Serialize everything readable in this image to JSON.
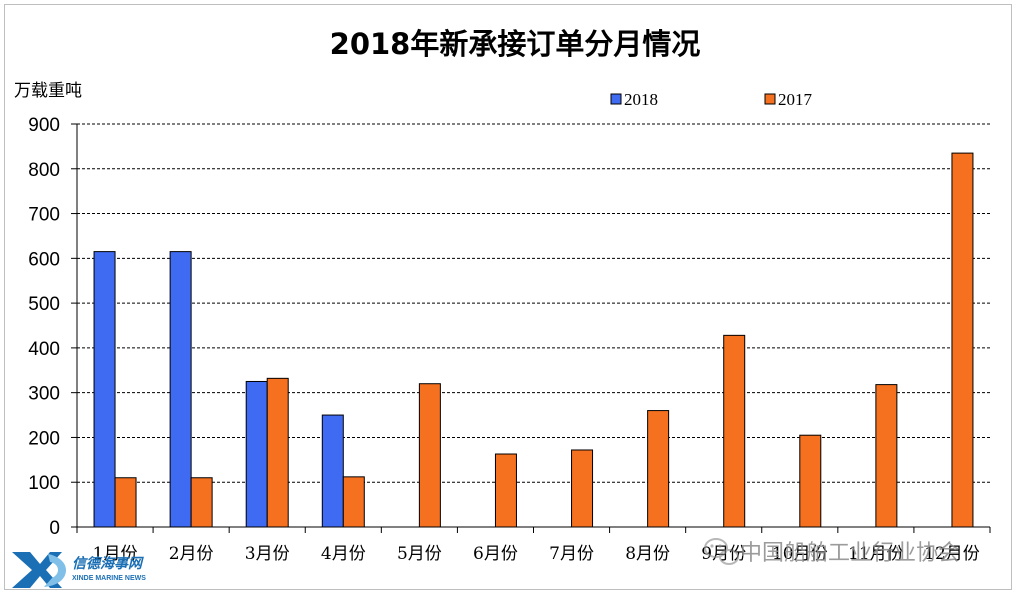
{
  "chart_data": {
    "type": "bar",
    "title": "2018年新承接订单分月情况",
    "ylabel": "万载重吨",
    "xlabel": "",
    "ylim": [
      0,
      900
    ],
    "yticks": [
      0,
      100,
      200,
      300,
      400,
      500,
      600,
      700,
      800,
      900
    ],
    "grid": true,
    "legend_position": "top-right",
    "categories": [
      "1月份",
      "2月份",
      "3月份",
      "4月份",
      "5月份",
      "6月份",
      "7月份",
      "8月份",
      "9月份",
      "10月份",
      "11月份",
      "12月份"
    ],
    "series": [
      {
        "name": "2018",
        "color": "#3F6AF2",
        "values": [
          615,
          615,
          325,
          250,
          null,
          null,
          null,
          null,
          null,
          null,
          null,
          null
        ]
      },
      {
        "name": "2017",
        "color": "#F5701F",
        "values": [
          110,
          110,
          332,
          112,
          320,
          163,
          172,
          260,
          428,
          205,
          318,
          835
        ]
      }
    ]
  },
  "watermark": {
    "text": "中国船舶工业行业协会",
    "icon": "wechat-icon"
  },
  "logo": {
    "cn": "信德海事网",
    "en": "XINDE MARINE NEWS",
    "mark": "XD"
  }
}
